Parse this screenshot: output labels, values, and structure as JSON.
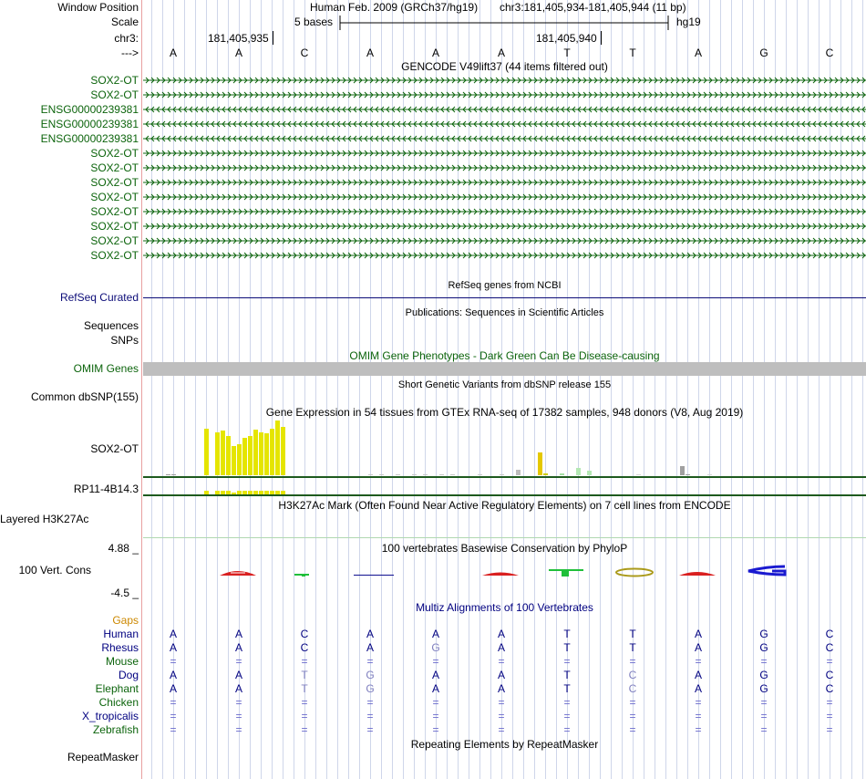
{
  "header": {
    "window_position_label": "Window Position",
    "scale_label": "Scale",
    "chrom_label": "chr3:",
    "strand_label": "--->",
    "assembly_title": "Human Feb. 2009 (GRCh37/hg19)",
    "position": "chr3:181,405,934-181,405,944 (11 bp)",
    "scale_text": "5 bases",
    "db": "hg19",
    "coord_ticks": [
      "181,405,935",
      "181,405,940"
    ],
    "sequence": [
      "A",
      "A",
      "C",
      "A",
      "A",
      "A",
      "T",
      "T",
      "A",
      "G",
      "C"
    ]
  },
  "gencode": {
    "title": "GENCODE V49lift37 (44 items filtered out)",
    "items": [
      "SOX2-OT",
      "SOX2-OT",
      "ENSG00000239381",
      "ENSG00000239381",
      "ENSG00000239381",
      "SOX2-OT",
      "SOX2-OT",
      "SOX2-OT",
      "SOX2-OT",
      "SOX2-OT",
      "SOX2-OT",
      "SOX2-OT",
      "SOX2-OT"
    ],
    "strands": [
      "+",
      "+",
      "-",
      "-",
      "-",
      "+",
      "+",
      "+",
      "+",
      "+",
      "+",
      "+",
      "+"
    ]
  },
  "refseq": {
    "title": "RefSeq genes from NCBI",
    "label": "RefSeq Curated"
  },
  "publications": {
    "title": "Publications: Sequences in Scientific Articles",
    "labels": [
      "Sequences",
      "SNPs"
    ]
  },
  "omim": {
    "title": "OMIM Gene Phenotypes - Dark Green Can Be Disease-causing",
    "label": "OMIM Genes"
  },
  "dbsnp": {
    "title": "Short Genetic Variants from dbSNP release 155",
    "label": "Common dbSNP(155)"
  },
  "gtex": {
    "title": "Gene Expression in 54 tissues from GTEx RNA-seq of 17382 samples, 948 donors (V8, Aug 2019)",
    "genes": [
      "SOX2-OT",
      "RP11-4B14.3"
    ],
    "chart_data": {
      "type": "bar",
      "series": [
        {
          "name": "SOX2-OT",
          "values": [
            0.5,
            0.3,
            0,
            0,
            0,
            0,
            0,
            54,
            0,
            49,
            51,
            45,
            34,
            36,
            43,
            45,
            53,
            49,
            48,
            54,
            63,
            56,
            0,
            0,
            0,
            0,
            0,
            0,
            0,
            0,
            0,
            0,
            0,
            0,
            0,
            0,
            0,
            0.5,
            0,
            0.5,
            0,
            0,
            0.5,
            0,
            0,
            0.5,
            0,
            0.5,
            0,
            0,
            0.5,
            0,
            0.5,
            0,
            0,
            0,
            0,
            0.5,
            0,
            0,
            0,
            1,
            0,
            0,
            6,
            0,
            0,
            0,
            26,
            2,
            0,
            0,
            2,
            0,
            0,
            8,
            0,
            5,
            0,
            0,
            0,
            0,
            0,
            0,
            0,
            0,
            1,
            0,
            0,
            0,
            0,
            0,
            0,
            0,
            11,
            1,
            0,
            0,
            0,
            1,
            0,
            0,
            0,
            0,
            0,
            0
          ],
          "colors": [
            "#9e9e9e",
            "#9e9e9e",
            "",
            "",
            "",
            "",
            "",
            "#e5e500",
            "",
            "#e5e500",
            "#e5e500",
            "#e5e500",
            "#e5e500",
            "#e5e500",
            "#e5e500",
            "#e5e500",
            "#e5e500",
            "#e5e500",
            "#e5e500",
            "#e5e500",
            "#e5e500",
            "#e5e500",
            "",
            "",
            "",
            "",
            "",
            "",
            "",
            "",
            "",
            "",
            "",
            "",
            "",
            "",
            "",
            "#c8c8c8",
            "",
            "#c8c8c8",
            "",
            "",
            "#c8c8c8",
            "",
            "",
            "#c8c8c8",
            "",
            "#c8c8c8",
            "",
            "",
            "#c8c8c8",
            "",
            "#c8c8c8",
            "",
            "",
            "",
            "",
            "#c8c8c8",
            "",
            "",
            "",
            "#c8c8c8",
            "",
            "",
            "#bdbdbd",
            "",
            "",
            "",
            "#e5c800",
            "#cdcd00",
            "",
            "",
            "#a8e0a8",
            "",
            "",
            "#b4e8b4",
            "",
            "#b4e8b4",
            "",
            "",
            "",
            "",
            "",
            "",
            "",
            "",
            "#d6d6d6",
            "",
            "",
            "",
            "",
            "",
            "",
            "",
            "#a0a0a0",
            "#a0a0a0",
            "",
            "",
            "",
            "#d6d6d6",
            "",
            "",
            "",
            "",
            "",
            ""
          ]
        },
        {
          "name": "RP11-4B14.3",
          "values": [
            0,
            0,
            0,
            0,
            0,
            0,
            0,
            1,
            0,
            1,
            1,
            1,
            0.5,
            1,
            1,
            1,
            1,
            1,
            1,
            1,
            1,
            1,
            0,
            0,
            0,
            0,
            0,
            0,
            0,
            0,
            0,
            0,
            0,
            0,
            0,
            0,
            0,
            0,
            0,
            0,
            0,
            0,
            0,
            0,
            0,
            0,
            0,
            0,
            0,
            0,
            0,
            0,
            0,
            0,
            0,
            0,
            0,
            0,
            0,
            0,
            0,
            0,
            0,
            0,
            0,
            0,
            0,
            0,
            0,
            0,
            0,
            0,
            0,
            0,
            0,
            0,
            0,
            0,
            0,
            0,
            0,
            0,
            0,
            0,
            0,
            0,
            0,
            0,
            0,
            0,
            0,
            0,
            0,
            0,
            0,
            0,
            0,
            0,
            0,
            0,
            0,
            0,
            0,
            0,
            0,
            0,
            0
          ],
          "colors": [
            "",
            "",
            "",
            "",
            "",
            "",
            "",
            "#e5e500",
            "",
            "#e5e500",
            "#e5e500",
            "#e5e500",
            "#e5e500",
            "#e5e500",
            "#e5e500",
            "#e5e500",
            "#e5e500",
            "#e5e500",
            "#e5e500",
            "#e5e500",
            "#e5e500",
            "#e5e500"
          ]
        }
      ],
      "ylim": [
        0,
        63
      ]
    }
  },
  "h3k27ac": {
    "title": "H3K27Ac Mark (Often Found Near Active Regulatory Elements) on 7 cell lines from ENCODE",
    "label": "Layered H3K27Ac"
  },
  "cons": {
    "title": "100 vertebrates Basewise Conservation by PhyloP",
    "label": "100 Vert. Cons",
    "max": "4.88 _",
    "min": "-4.5 _"
  },
  "multiz": {
    "title": "Multiz Alignments of 100 Vertebrates",
    "gaps_label": "Gaps",
    "species": [
      {
        "name": "Human",
        "bases": [
          "A",
          "A",
          "C",
          "A",
          "A",
          "A",
          "T",
          "T",
          "A",
          "G",
          "C"
        ],
        "dim": [
          false,
          false,
          false,
          false,
          false,
          false,
          false,
          false,
          false,
          false,
          false
        ]
      },
      {
        "name": "Rhesus",
        "bases": [
          "A",
          "A",
          "C",
          "A",
          "G",
          "A",
          "T",
          "T",
          "A",
          "G",
          "C"
        ],
        "dim": [
          false,
          false,
          false,
          false,
          true,
          false,
          false,
          false,
          false,
          false,
          false
        ]
      },
      {
        "name": "Mouse",
        "bases": [
          "=",
          "=",
          "=",
          "=",
          "=",
          "=",
          "=",
          "=",
          "=",
          "=",
          "="
        ],
        "dim": [
          false,
          false,
          false,
          false,
          false,
          false,
          false,
          false,
          false,
          false,
          false
        ]
      },
      {
        "name": "Dog",
        "bases": [
          "A",
          "A",
          "T",
          "G",
          "A",
          "A",
          "T",
          "C",
          "A",
          "G",
          "C"
        ],
        "dim": [
          false,
          false,
          true,
          true,
          false,
          false,
          false,
          true,
          false,
          false,
          false
        ]
      },
      {
        "name": "Elephant",
        "bases": [
          "A",
          "A",
          "T",
          "G",
          "A",
          "A",
          "T",
          "C",
          "A",
          "G",
          "C"
        ],
        "dim": [
          false,
          false,
          true,
          true,
          false,
          false,
          false,
          true,
          false,
          false,
          false
        ]
      },
      {
        "name": "Chicken",
        "bases": [
          "=",
          "=",
          "=",
          "=",
          "=",
          "=",
          "=",
          "=",
          "=",
          "=",
          "="
        ],
        "dim": [
          false,
          false,
          false,
          false,
          false,
          false,
          false,
          false,
          false,
          false,
          false
        ]
      },
      {
        "name": "X_tropicalis",
        "bases": [
          "=",
          "=",
          "=",
          "=",
          "=",
          "=",
          "=",
          "=",
          "=",
          "=",
          "="
        ],
        "dim": [
          false,
          false,
          false,
          false,
          false,
          false,
          false,
          false,
          false,
          false,
          false
        ]
      },
      {
        "name": "Zebrafish",
        "bases": [
          "=",
          "=",
          "=",
          "=",
          "=",
          "=",
          "=",
          "=",
          "=",
          "=",
          "="
        ],
        "dim": [
          false,
          false,
          false,
          false,
          false,
          false,
          false,
          false,
          false,
          false,
          false
        ]
      }
    ]
  },
  "repeatmasker": {
    "title": "Repeating Elements by RepeatMasker",
    "label": "RepeatMasker"
  },
  "colors": {
    "gencode": "#0c640c",
    "refseq": "#0c0c78",
    "omim": "#bebebe",
    "cons_label": "#3a3a92",
    "cons_min": "#8a2a2a",
    "gaps": "#cc8800",
    "dna": "#000080",
    "dna_dim": "#7f7fbf",
    "grid": "#cfd6ea",
    "left_border": "#e8a0a0"
  }
}
